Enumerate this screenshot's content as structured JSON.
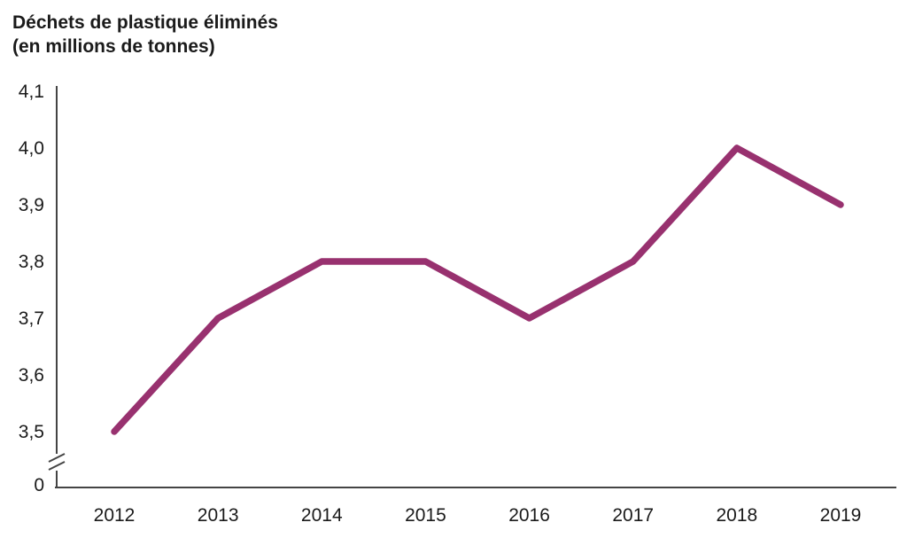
{
  "chart_data": {
    "type": "line",
    "title": "Déchets de plastique éliminés",
    "subtitle": "(en millions de tonnes)",
    "xlabel": "",
    "ylabel": "",
    "categories": [
      2012,
      2013,
      2014,
      2015,
      2016,
      2017,
      2018,
      2019
    ],
    "values": [
      3.5,
      3.7,
      3.8,
      3.8,
      3.7,
      3.8,
      4.0,
      3.9
    ],
    "x_tick_labels": [
      "2012",
      "2013",
      "2014",
      "2015",
      "2016",
      "2017",
      "2018",
      "2019"
    ],
    "y_ticks": [
      {
        "value": 4.1,
        "label": "4,1"
      },
      {
        "value": 4.0,
        "label": "4,0"
      },
      {
        "value": 3.9,
        "label": "3,9"
      },
      {
        "value": 3.8,
        "label": "3,8"
      },
      {
        "value": 3.7,
        "label": "3,7"
      },
      {
        "value": 3.6,
        "label": "3,6"
      },
      {
        "value": 3.5,
        "label": "3,5"
      }
    ],
    "zero_tick_label": "0",
    "axis_break": true,
    "ylim_display": [
      3.5,
      4.1
    ],
    "grid": false,
    "legend": "none",
    "line_color": "#98316F",
    "axis_color": "#444444",
    "label_color": "#1a1a1a"
  }
}
